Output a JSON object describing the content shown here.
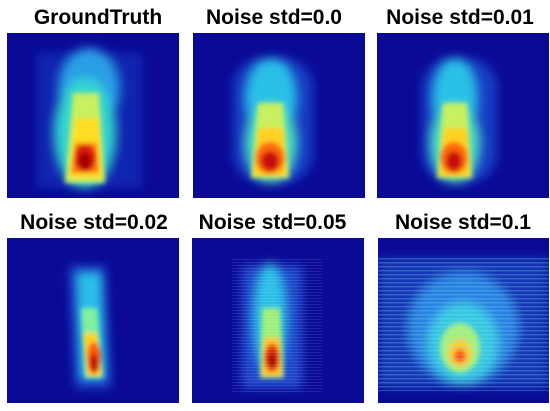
{
  "figure": {
    "panels": [
      {
        "title": "GroundTruth"
      },
      {
        "title": "Noise std=0.0"
      },
      {
        "title": "Noise std=0.01"
      },
      {
        "title": "Noise std=0.02"
      },
      {
        "title": "Noise std=0.05"
      },
      {
        "title": "Noise std=0.1"
      }
    ],
    "colormap": "jet",
    "background_color": "#0a0a96"
  }
}
